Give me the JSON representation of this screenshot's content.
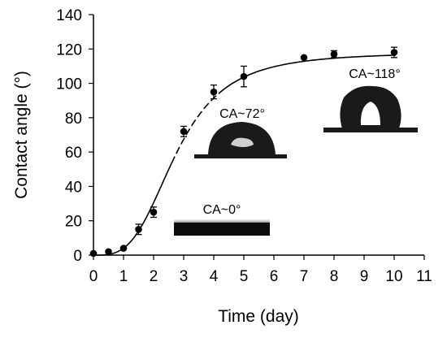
{
  "chart_data": {
    "type": "scatter",
    "xlabel": "Time (day)",
    "ylabel": "Contact angle (°)",
    "xlim": [
      0,
      11
    ],
    "ylim": [
      0,
      140
    ],
    "xticks": [
      "0",
      "1",
      "2",
      "3",
      "4",
      "5",
      "6",
      "7",
      "8",
      "9",
      "10",
      "11"
    ],
    "yticks": [
      "0",
      "20",
      "40",
      "60",
      "80",
      "100",
      "120",
      "140"
    ],
    "grid": false,
    "series": [
      {
        "x": [
          0,
          0.5,
          1,
          1.5,
          2,
          3,
          4,
          5,
          7,
          8,
          10
        ],
        "y": [
          1,
          2,
          4,
          15,
          25,
          72,
          95,
          104,
          115,
          117,
          118
        ],
        "error": [
          0,
          0,
          0,
          3,
          3,
          3,
          4,
          6,
          0,
          2,
          3
        ]
      }
    ],
    "fit_curve": {
      "style": "solid-dashed",
      "color": "#000000",
      "marker": "filled-circle"
    },
    "annotations": [
      {
        "text": "CA~0°"
      },
      {
        "text": "CA~72°"
      },
      {
        "text": "CA~118°"
      }
    ]
  }
}
